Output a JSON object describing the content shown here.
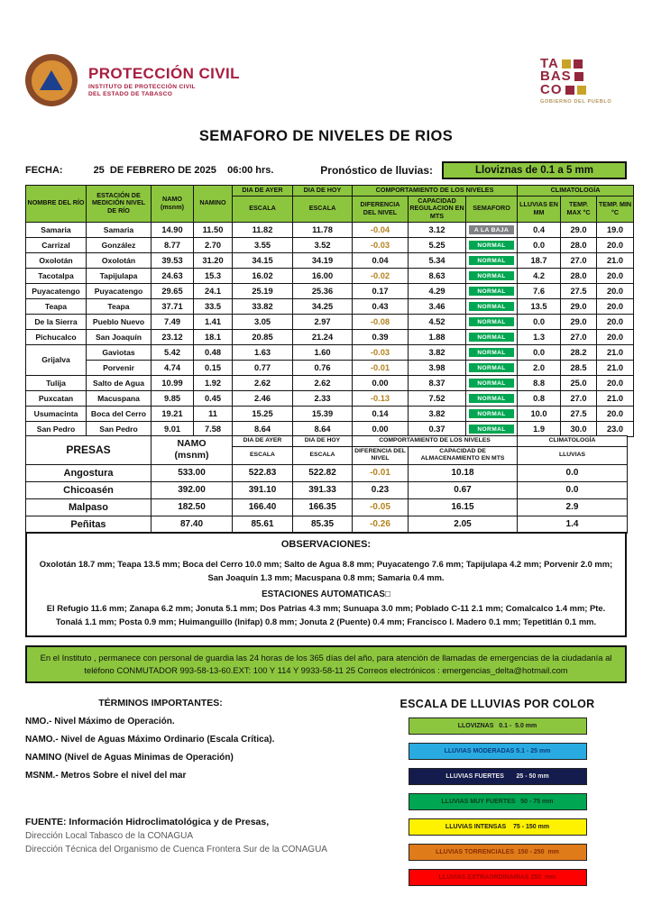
{
  "colors": {
    "header_green": "#8CC63E",
    "normal_green": "#00A651",
    "baja_gray": "#808285",
    "negative": "#B5811D",
    "brand_maroon": "#A91E40"
  },
  "brand": {
    "title": "PROTECCIÓN CIVIL",
    "sub1": "INSTITUTO DE PROTECCIÓN CIVIL",
    "sub2": "DEL ESTADO DE TABASCO",
    "tabasco": [
      "TA",
      "BAS",
      "CO"
    ],
    "tabasco_caption": "GOBIERNO DEL PUEBLO"
  },
  "title": "SEMAFORO DE NIVELES DE RIOS",
  "date_row": {
    "fecha_label": "FECHA:",
    "fecha_value": "25  DE FEBRERO DE 2025    06:00 hrs.",
    "pronostico_label": "Pronóstico de lluvias:",
    "pronostico_value": "Lloviznas de 0.1 a 5 mm"
  },
  "rivers_table": {
    "col_headers": {
      "rio": "NOMBRE DEL RÍO",
      "estacion": "ESTACIÓN DE MEDICIÓN NIVEL DE RÍO",
      "namo_l1": "NAMO",
      "namo_l2": "(msnm)",
      "namino": "NAMINO",
      "ayer": "DIA DE AYER",
      "hoy": "DIA DE HOY",
      "escala": "ESCALA",
      "comportamiento": "COMPORTAMIENTO DE LOS NIVELES",
      "diferencia": "DIFERENCIA DEL NIVEL",
      "capacidad": "CAPACIDAD REGULACION EN MTS",
      "semaforo": "SEMAFORO",
      "climatologia": "CLIMATOLOGÍA",
      "lluvias": "LLUVIAS EN MM",
      "tmax": "TEMP. MAX °C",
      "tmin": "TEMP.  MIN °C"
    },
    "rows": [
      {
        "rio": "Samaria",
        "estacion": "Samaria",
        "namo": "14.90",
        "namino": "11.50",
        "ayer": "11.82",
        "hoy": "11.78",
        "dif": "-0.04",
        "cap": "3.12",
        "semaforo": "A LA BAJA",
        "status": "baja",
        "lluvias": "0.4",
        "tmax": "29.0",
        "tmin": "19.0"
      },
      {
        "rio": "Carrizal",
        "estacion": "González",
        "namo": "8.77",
        "namino": "2.70",
        "ayer": "3.55",
        "hoy": "3.52",
        "dif": "-0.03",
        "cap": "5.25",
        "semaforo": "NORMAL",
        "status": "normal",
        "lluvias": "0.0",
        "tmax": "28.0",
        "tmin": "20.0"
      },
      {
        "rio": "Oxolotán",
        "estacion": "Oxolotán",
        "namo": "39.53",
        "namino": "31.20",
        "ayer": "34.15",
        "hoy": "34.19",
        "dif": "0.04",
        "cap": "5.34",
        "semaforo": "NORMAL",
        "status": "normal",
        "lluvias": "18.7",
        "tmax": "27.0",
        "tmin": "21.0"
      },
      {
        "rio": "Tacotalpa",
        "estacion": "Tapijulapa",
        "namo": "24.63",
        "namino": "15.3",
        "ayer": "16.02",
        "hoy": "16.00",
        "dif": "-0.02",
        "cap": "8.63",
        "semaforo": "NORMAL",
        "status": "normal",
        "lluvias": "4.2",
        "tmax": "28.0",
        "tmin": "20.0"
      },
      {
        "rio": "Puyacatengo",
        "estacion": "Puyacatengo",
        "namo": "29.65",
        "namino": "24.1",
        "ayer": "25.19",
        "hoy": "25.36",
        "dif": "0.17",
        "cap": "4.29",
        "semaforo": "NORMAL",
        "status": "normal",
        "lluvias": "7.6",
        "tmax": "27.5",
        "tmin": "20.0"
      },
      {
        "rio": "Teapa",
        "estacion": "Teapa",
        "namo": "37.71",
        "namino": "33.5",
        "ayer": "33.82",
        "hoy": "34.25",
        "dif": "0.43",
        "cap": "3.46",
        "semaforo": "NORMAL",
        "status": "normal",
        "lluvias": "13.5",
        "tmax": "29.0",
        "tmin": "20.0"
      },
      {
        "rio": "De la Sierra",
        "estacion": "Pueblo Nuevo",
        "namo": "7.49",
        "namino": "1.41",
        "ayer": "3.05",
        "hoy": "2.97",
        "dif": "-0.08",
        "cap": "4.52",
        "semaforo": "NORMAL",
        "status": "normal",
        "lluvias": "0.0",
        "tmax": "29.0",
        "tmin": "20.0"
      },
      {
        "rio": "Pichucalco",
        "estacion": "San Joaquín",
        "namo": "23.12",
        "namino": "18.1",
        "ayer": "20.85",
        "hoy": "21.24",
        "dif": "0.39",
        "cap": "1.88",
        "semaforo": "NORMAL",
        "status": "normal",
        "lluvias": "1.3",
        "tmax": "27.0",
        "tmin": "20.0"
      },
      {
        "rio": "Grijalva",
        "rio_rowspan": 2,
        "estacion": "Gaviotas",
        "namo": "5.42",
        "namino": "0.48",
        "ayer": "1.63",
        "hoy": "1.60",
        "dif": "-0.03",
        "cap": "3.82",
        "semaforo": "NORMAL",
        "status": "normal",
        "lluvias": "0.0",
        "tmax": "28.2",
        "tmin": "21.0"
      },
      {
        "rio": null,
        "estacion": "Porvenir",
        "namo": "4.74",
        "namino": "0.15",
        "ayer": "0.77",
        "hoy": "0.76",
        "dif": "-0.01",
        "cap": "3.98",
        "semaforo": "NORMAL",
        "status": "normal",
        "lluvias": "2.0",
        "tmax": "28.5",
        "tmin": "21.0"
      },
      {
        "rio": "Tulija",
        "estacion": "Salto de Agua",
        "namo": "10.99",
        "namino": "1.92",
        "ayer": "2.62",
        "hoy": "2.62",
        "dif": "0.00",
        "cap": "8.37",
        "semaforo": "NORMAL",
        "status": "normal",
        "lluvias": "8.8",
        "tmax": "25.0",
        "tmin": "20.0"
      },
      {
        "rio": "Puxcatan",
        "estacion": "Macuspana",
        "namo": "9.85",
        "namino": "0.45",
        "ayer": "2.46",
        "hoy": "2.33",
        "dif": "-0.13",
        "cap": "7.52",
        "semaforo": "NORMAL",
        "status": "normal",
        "lluvias": "0.8",
        "tmax": "27.0",
        "tmin": "21.0"
      },
      {
        "rio": "Usumacinta",
        "estacion": "Boca del Cerro",
        "namo": "19.21",
        "namino": "11",
        "ayer": "15.25",
        "hoy": "15.39",
        "dif": "0.14",
        "cap": "3.82",
        "semaforo": "NORMAL",
        "status": "normal",
        "lluvias": "10.0",
        "tmax": "27.5",
        "tmin": "20.0"
      },
      {
        "rio": "San Pedro",
        "estacion": "San Pedro",
        "namo": "9.01",
        "namino": "7.58",
        "ayer": "8.64",
        "hoy": "8.64",
        "dif": "0.00",
        "cap": "0.37",
        "semaforo": "NORMAL",
        "status": "normal",
        "lluvias": "1.9",
        "tmax": "30.0",
        "tmin": "23.0"
      }
    ]
  },
  "presas_table": {
    "headers": {
      "presas": "PRESAS",
      "namo_l1": "NAMO",
      "namo_l2": "(msnm)",
      "ayer": "DIA DE AYER",
      "hoy": "DIA DE HOY",
      "escala": "ESCALA",
      "comportamiento": "COMPORTAMIENTO DE LOS NIVELES",
      "diferencia": "DIFERENCIA DEL NIVEL",
      "capacidad": "CAPACIDAD DE ALMACENAMIENTO EN MTS",
      "climatologia": "CLIMATOLOGÍA",
      "lluvias": "LLUVIAS"
    },
    "rows": [
      {
        "name": "Angostura",
        "namo": "533.00",
        "ayer": "522.83",
        "hoy": "522.82",
        "dif": "-0.01",
        "cap": "10.18",
        "lluvias": "0.0"
      },
      {
        "name": "Chicoasén",
        "namo": "392.00",
        "ayer": "391.10",
        "hoy": "391.33",
        "dif": "0.23",
        "cap": "0.67",
        "lluvias": "0.0"
      },
      {
        "name": "Malpaso",
        "namo": "182.50",
        "ayer": "166.40",
        "hoy": "166.35",
        "dif": "-0.05",
        "cap": "16.15",
        "lluvias": "2.9"
      },
      {
        "name": "Peñitas",
        "namo": "87.40",
        "ayer": "85.61",
        "hoy": "85.35",
        "dif": "-0.26",
        "cap": "2.05",
        "lluvias": "1.4"
      }
    ]
  },
  "observaciones": {
    "title": "OBSERVACIONES:",
    "line1": "Oxolotán 18.7 mm; Teapa 13.5 mm; Boca del Cerro 10.0 mm; Salto de Agua 8.8 mm; Puyacatengo  7.6 mm; Tapijulapa 4.2 mm; Porvenir 2.0 mm; San Joaquín 1.3 mm; Macuspana 0.8 mm; Samaria 0.4 mm.",
    "subtitle": "ESTACIONES AUTOMATICAS□",
    "line2": "El Refugio 11.6 mm; Zanapa 6.2 mm; Jonuta 5.1 mm; Dos Patrias 4.3 mm; Sunuapa 3.0 mm; Poblado C-11 2.1 mm; Comalcalco 1.4 mm; Pte. Tonalá 1.1 mm; Posta 0.9 mm; Huimanguillo (Inifap) 0.8 mm; Jonuta 2 (Puente) 0.4 mm; Francisco I. Madero 0.1 mm; Tepetitlán 0.1 mm."
  },
  "info_band": "En el Instituto , permanece con personal de guardia las 24 horas de los 365 días del año, para atención de llamadas de emergencias de la ciudadanía al teléfono  CONMUTADOR  993-58-13-60.EXT: 100 Y 114  Y 9933-58-11 25   Correos electrónicos : emergencias_delta@hotmail.com",
  "terminos": {
    "title": "TÉRMINOS IMPORTANTES:",
    "items": [
      "NMO.- Nivel Máximo de Operación.",
      "NAMO.- Nivel de Aguas Máximo Ordinario (Escala Crítica).",
      "NAMINO (Nivel de Aguas Minimas de Operación)",
      "MSNM.- Metros Sobre el nivel del mar"
    ]
  },
  "escala": {
    "title": "ESCALA DE LLUVIAS POR COLOR",
    "bars": [
      {
        "label": "LLOVIZNAS   0.1 -  5.0 mm",
        "bg": "#8CC63E",
        "fg": "#1A1A1A"
      },
      {
        "label": "LLUVIAS MODERADAS 5.1 - 25 mm",
        "bg": "#29ABE2",
        "fg": "#0D3C7D"
      },
      {
        "label": "LLUVIAS FUERTES       25 - 50 mm",
        "bg": "#141B4D",
        "fg": "#E9E9E9"
      },
      {
        "label": "LLUVIAS MUY FUERTES   50 - 75 mm",
        "bg": "#00A651",
        "fg": "#0B3D20"
      },
      {
        "label": "LLUVIAS INTENSAS    75 - 150 mm",
        "bg": "#FFF200",
        "fg": "#1A1A1A"
      },
      {
        "label": "LLUVIAS TORRENCIALES  150 - 250  mm",
        "bg": "#E07B1A",
        "fg": "#8A2E00"
      },
      {
        "label": "LLUVIAS EXTRAORDINARIAS 250  mm",
        "bg": "#FF0000",
        "fg": "#A50000"
      }
    ]
  },
  "fuente": {
    "line1": "FUENTE: Información Hidroclimatológica y de Presas,",
    "line2": "Dirección Local Tabasco de la CONAGUA",
    "line3": "Dirección Técnica del Organismo de Cuenca Frontera Sur de la CONAGUA"
  }
}
